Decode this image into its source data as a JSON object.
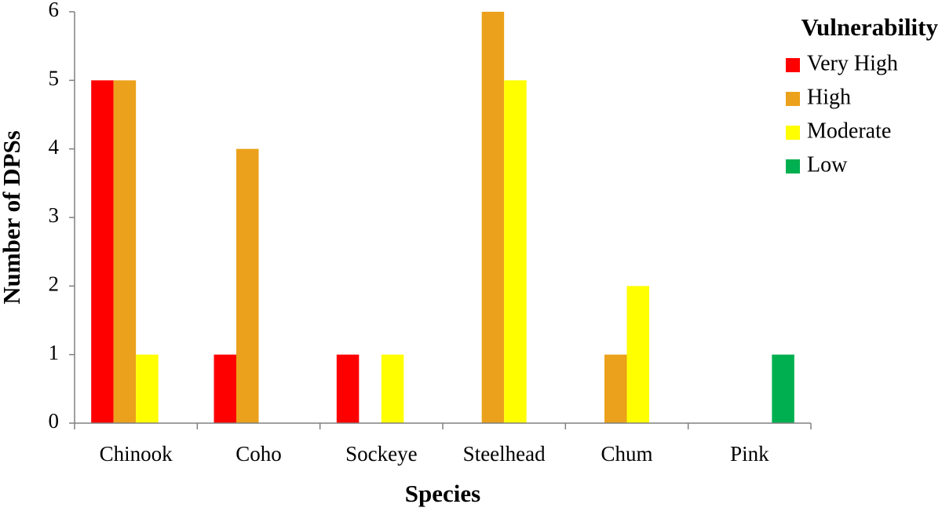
{
  "chart_data": {
    "type": "bar",
    "x_label": "Species",
    "y_label": "Number of DPSs",
    "legend_title": "Vulnerability",
    "legend_position": "top-right",
    "grid": false,
    "categories": [
      "Chinook",
      "Coho",
      "Sockeye",
      "Steelhead",
      "Chum",
      "Pink"
    ],
    "series": [
      {
        "name": "Very High",
        "color": "#ff0000",
        "values": [
          5,
          1,
          1,
          0,
          0,
          0
        ]
      },
      {
        "name": "High",
        "color": "#eba11b",
        "values": [
          5,
          4,
          0,
          6,
          1,
          0
        ]
      },
      {
        "name": "Moderate",
        "color": "#ffff00",
        "values": [
          1,
          0,
          1,
          5,
          2,
          0
        ]
      },
      {
        "name": "Low",
        "color": "#00b050",
        "values": [
          0,
          0,
          0,
          0,
          0,
          1
        ]
      }
    ],
    "ylim": [
      0,
      6
    ],
    "yticks": [
      0,
      1,
      2,
      3,
      4,
      5,
      6
    ]
  }
}
